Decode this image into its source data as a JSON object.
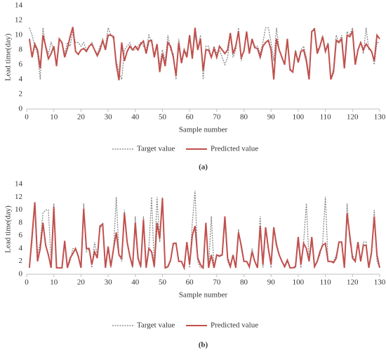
{
  "chart_data": [
    {
      "type": "line",
      "title": "(a)",
      "xlabel": "Sample number",
      "ylabel": "Lead time(day)",
      "xlim": [
        0,
        130
      ],
      "xticks": [
        0,
        10,
        20,
        30,
        40,
        50,
        60,
        70,
        80,
        90,
        100,
        110,
        120,
        130
      ],
      "ylim": [
        0,
        14
      ],
      "yticks": [
        0,
        2,
        4,
        6,
        8,
        10,
        12,
        14
      ],
      "grid": false,
      "legend": "bottom",
      "x": [
        1,
        2,
        3,
        4,
        5,
        6,
        7,
        8,
        9,
        10,
        11,
        12,
        13,
        14,
        15,
        16,
        17,
        18,
        19,
        20,
        21,
        22,
        23,
        24,
        25,
        26,
        27,
        28,
        29,
        30,
        31,
        32,
        33,
        34,
        35,
        36,
        37,
        38,
        39,
        40,
        41,
        42,
        43,
        44,
        45,
        46,
        47,
        48,
        49,
        50,
        51,
        52,
        53,
        54,
        55,
        56,
        57,
        58,
        59,
        60,
        61,
        62,
        63,
        64,
        65,
        66,
        67,
        68,
        69,
        70,
        71,
        72,
        73,
        74,
        75,
        76,
        77,
        78,
        79,
        80,
        81,
        82,
        83,
        84,
        85,
        86,
        87,
        88,
        89,
        90,
        91,
        92,
        93,
        94,
        95,
        96,
        97,
        98,
        99,
        100,
        101,
        102,
        103,
        104,
        105,
        106,
        107,
        108,
        109,
        110,
        111,
        112,
        113,
        114,
        115,
        116,
        117,
        118,
        119,
        120,
        121,
        122,
        123,
        124,
        125,
        126,
        127,
        128,
        129,
        130
      ],
      "series": [
        {
          "name": "Target value",
          "color": "#7f7f7f",
          "linestyle": "dotted",
          "values": [
            11,
            10,
            8.5,
            7.5,
            4,
            11,
            8.5,
            7.5,
            9,
            8,
            6,
            9,
            9,
            7.5,
            9,
            8.5,
            10.5,
            9,
            9,
            8.5,
            9,
            8,
            8.5,
            9,
            8,
            7.5,
            8.5,
            9,
            8.5,
            11,
            10,
            9.5,
            6.5,
            5,
            4,
            8,
            8.5,
            9,
            8,
            8,
            8.5,
            9,
            8.5,
            8,
            10,
            9,
            7.5,
            8.5,
            6,
            8,
            6.5,
            10,
            8,
            7.5,
            4,
            9.5,
            6.5,
            8,
            7.5,
            9.5,
            7,
            10,
            8,
            10,
            4,
            8.5,
            8.5,
            7,
            8.5,
            7.5,
            8,
            7,
            6,
            7,
            10,
            7,
            8,
            11,
            6.5,
            8,
            10,
            8,
            9,
            8.5,
            8.5,
            7.5,
            9,
            11,
            11,
            9,
            6.5,
            11,
            8,
            7,
            6,
            9,
            5.5,
            5,
            8,
            6.5,
            8,
            8.5,
            7,
            4.5,
            10.5,
            11,
            8,
            8.5,
            10,
            8,
            9,
            4,
            5.5,
            10,
            9,
            10,
            6,
            10.5,
            10,
            11,
            6.5,
            8,
            9,
            7.5,
            11,
            8,
            8,
            6,
            9,
            9
          ]
        },
        {
          "name": "Predicted value",
          "color": "#c0504d",
          "linestyle": "solid",
          "values": [
            9.5,
            7,
            8.8,
            8,
            5.5,
            10,
            8.5,
            6.8,
            7.5,
            8.5,
            5.8,
            9.5,
            9,
            7,
            8.2,
            9.8,
            11.1,
            7.8,
            7.4,
            8,
            8.2,
            7.8,
            8.5,
            8.8,
            8,
            7.2,
            8,
            9.3,
            8,
            10,
            10,
            9.8,
            6,
            3.9,
            9,
            6.5,
            7.8,
            8.5,
            8,
            8.5,
            8,
            8.8,
            9.2,
            7.5,
            9.2,
            9.3,
            7,
            8.8,
            5,
            7.5,
            5.8,
            9,
            8.5,
            7,
            4.5,
            9,
            6.2,
            8,
            7,
            10,
            6.8,
            11,
            8,
            9.5,
            5.2,
            8,
            8,
            7,
            8.2,
            7,
            8.5,
            8,
            7.5,
            8,
            10.3,
            7.5,
            8.5,
            10.5,
            7,
            7.8,
            10.5,
            7.5,
            9.5,
            8.3,
            8.2,
            7,
            8.5,
            9,
            9.3,
            8,
            4,
            9.5,
            8,
            7,
            6,
            9.5,
            5.3,
            5,
            7.8,
            6.3,
            7.8,
            8,
            6.5,
            4,
            10.5,
            10.8,
            7.5,
            8.5,
            9.8,
            7.8,
            8.8,
            4,
            5,
            9.3,
            9,
            9.5,
            5.5,
            10,
            9.8,
            10.5,
            6,
            8,
            9,
            8,
            8.8,
            8.3,
            7.8,
            6.5,
            10,
            9.5
          ]
        }
      ]
    },
    {
      "type": "line",
      "title": "(b)",
      "xlabel": "Sample number",
      "ylabel": "Lead time(day)",
      "xlim": [
        0,
        130
      ],
      "xticks": [
        0,
        10,
        20,
        30,
        40,
        50,
        60,
        70,
        80,
        90,
        100,
        110,
        120,
        130
      ],
      "ylim": [
        0,
        14
      ],
      "yticks": [
        0,
        2,
        4,
        6,
        8,
        10,
        12,
        14
      ],
      "grid": false,
      "legend": "bottom",
      "x": [
        1,
        2,
        3,
        4,
        5,
        6,
        7,
        8,
        9,
        10,
        11,
        12,
        13,
        14,
        15,
        16,
        17,
        18,
        19,
        20,
        21,
        22,
        23,
        24,
        25,
        26,
        27,
        28,
        29,
        30,
        31,
        32,
        33,
        34,
        35,
        36,
        37,
        38,
        39,
        40,
        41,
        42,
        43,
        44,
        45,
        46,
        47,
        48,
        49,
        50,
        51,
        52,
        53,
        54,
        55,
        56,
        57,
        58,
        59,
        60,
        61,
        62,
        63,
        64,
        65,
        66,
        67,
        68,
        69,
        70,
        71,
        72,
        73,
        74,
        75,
        76,
        77,
        78,
        79,
        80,
        81,
        82,
        83,
        84,
        85,
        86,
        87,
        88,
        89,
        90,
        91,
        92,
        93,
        94,
        95,
        96,
        97,
        98,
        99,
        100,
        101,
        102,
        103,
        104,
        105,
        106,
        107,
        108,
        109,
        110,
        111,
        112,
        113,
        114,
        115,
        116,
        117,
        118,
        119,
        120,
        121,
        122,
        123,
        124,
        125,
        126,
        127,
        128,
        129,
        130
      ],
      "series": [
        {
          "name": "Target value",
          "color": "#7f7f7f",
          "linestyle": "dotted",
          "values": [
            1,
            5,
            11,
            3,
            5,
            9.5,
            10,
            10,
            2,
            11,
            1,
            1,
            1,
            5,
            1,
            2,
            4,
            4,
            3,
            1,
            11,
            3.5,
            4,
            1,
            5,
            3,
            7,
            8,
            1,
            4,
            1,
            4,
            12,
            3,
            2,
            10,
            5,
            3,
            1,
            9,
            3,
            1,
            9,
            1,
            4,
            12,
            1,
            12,
            5,
            12,
            1,
            1,
            2,
            4.5,
            5,
            2,
            2,
            1,
            5,
            1,
            8,
            13,
            2,
            1,
            1,
            8,
            1,
            9,
            1,
            3,
            3,
            3,
            8,
            2,
            1,
            3,
            1,
            7,
            4,
            2,
            2,
            1,
            4,
            2,
            1,
            9,
            1,
            7,
            4,
            1,
            7,
            5,
            3,
            2,
            1,
            2,
            1,
            1,
            1,
            5,
            1,
            5,
            11,
            2,
            5,
            1,
            2,
            3,
            5,
            12,
            2,
            2,
            2,
            3,
            5,
            5,
            1,
            11,
            5,
            3,
            2,
            5,
            2,
            5,
            5,
            1,
            3,
            10,
            2,
            1
          ]
        },
        {
          "name": "Predicted value",
          "color": "#c0504d",
          "linestyle": "solid",
          "values": [
            1,
            6,
            11.2,
            2,
            4,
            8,
            4.5,
            3,
            1,
            10.5,
            1,
            1,
            1,
            5.2,
            1,
            2.5,
            3.2,
            4,
            2.8,
            1,
            10.2,
            4,
            4,
            1.5,
            3.5,
            2.5,
            7.5,
            7.8,
            1,
            4.3,
            1.2,
            4,
            6.5,
            3,
            2.5,
            9.5,
            5,
            2.8,
            1.2,
            8,
            2.5,
            1.2,
            8.5,
            1,
            4,
            3.5,
            1.2,
            8,
            5.5,
            11.8,
            1,
            1.2,
            2.2,
            4.8,
            4.8,
            2,
            2,
            1,
            5,
            1.5,
            6,
            7.5,
            2.5,
            1.5,
            1,
            8,
            1,
            3,
            1,
            3,
            2.8,
            3,
            9,
            2.5,
            1.2,
            3,
            1,
            6.5,
            4.5,
            2,
            2,
            1.2,
            3.5,
            2,
            1,
            7.5,
            1.5,
            7.3,
            4,
            1.5,
            7.3,
            4.5,
            3,
            2,
            1.2,
            2.2,
            1,
            1,
            1.2,
            5.8,
            1.5,
            4.8,
            4,
            2,
            5.8,
            1.2,
            2,
            3.5,
            4.5,
            4.8,
            2,
            2,
            1.8,
            2.5,
            5,
            5,
            1,
            9.5,
            6,
            2.5,
            2,
            5,
            2,
            4.5,
            4.5,
            1,
            3.5,
            9,
            3,
            1
          ]
        }
      ]
    }
  ]
}
